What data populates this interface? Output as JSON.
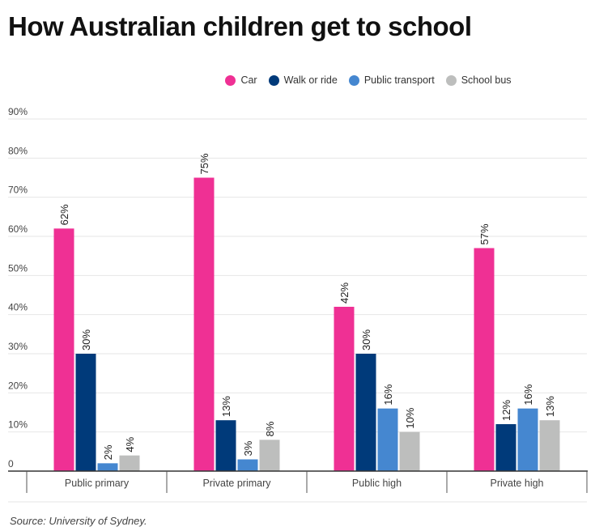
{
  "title": "How Australian children get to school",
  "source": "Source: University of Sydney.",
  "legend": [
    {
      "label": "Car",
      "color": "#ef3094"
    },
    {
      "label": "Walk or ride",
      "color": "#003a7a"
    },
    {
      "label": "Public transport",
      "color": "#4587d0"
    },
    {
      "label": "School bus",
      "color": "#bdbebd"
    }
  ],
  "chart_data": {
    "type": "bar",
    "title": "How Australian children get to school",
    "xlabel": "",
    "ylabel": "",
    "ylim": [
      0,
      90
    ],
    "yticks": [
      0,
      10,
      20,
      30,
      40,
      50,
      60,
      70,
      80,
      90
    ],
    "ytick_labels": [
      "0",
      "10%",
      "20%",
      "30%",
      "40%",
      "50%",
      "60%",
      "70%",
      "80%",
      "90%"
    ],
    "grid": true,
    "legend_position": "top-center",
    "categories": [
      "Public primary",
      "Private primary",
      "Public high",
      "Private high"
    ],
    "series": [
      {
        "name": "Car",
        "color": "#ef3094",
        "values": [
          62,
          75,
          42,
          57
        ],
        "labels": [
          "62%",
          "75%",
          "42%",
          "57%"
        ]
      },
      {
        "name": "Walk or ride",
        "color": "#003a7a",
        "values": [
          30,
          13,
          30,
          12
        ],
        "labels": [
          "30%",
          "13%",
          "30%",
          "12%"
        ]
      },
      {
        "name": "Public transport",
        "color": "#4587d0",
        "values": [
          2,
          3,
          16,
          16
        ],
        "labels": [
          "2%",
          "3%",
          "16%",
          "16%"
        ]
      },
      {
        "name": "School bus",
        "color": "#bdbebd",
        "values": [
          4,
          8,
          10,
          13
        ],
        "labels": [
          "4%",
          "8%",
          "10%",
          "13%"
        ]
      }
    ]
  }
}
